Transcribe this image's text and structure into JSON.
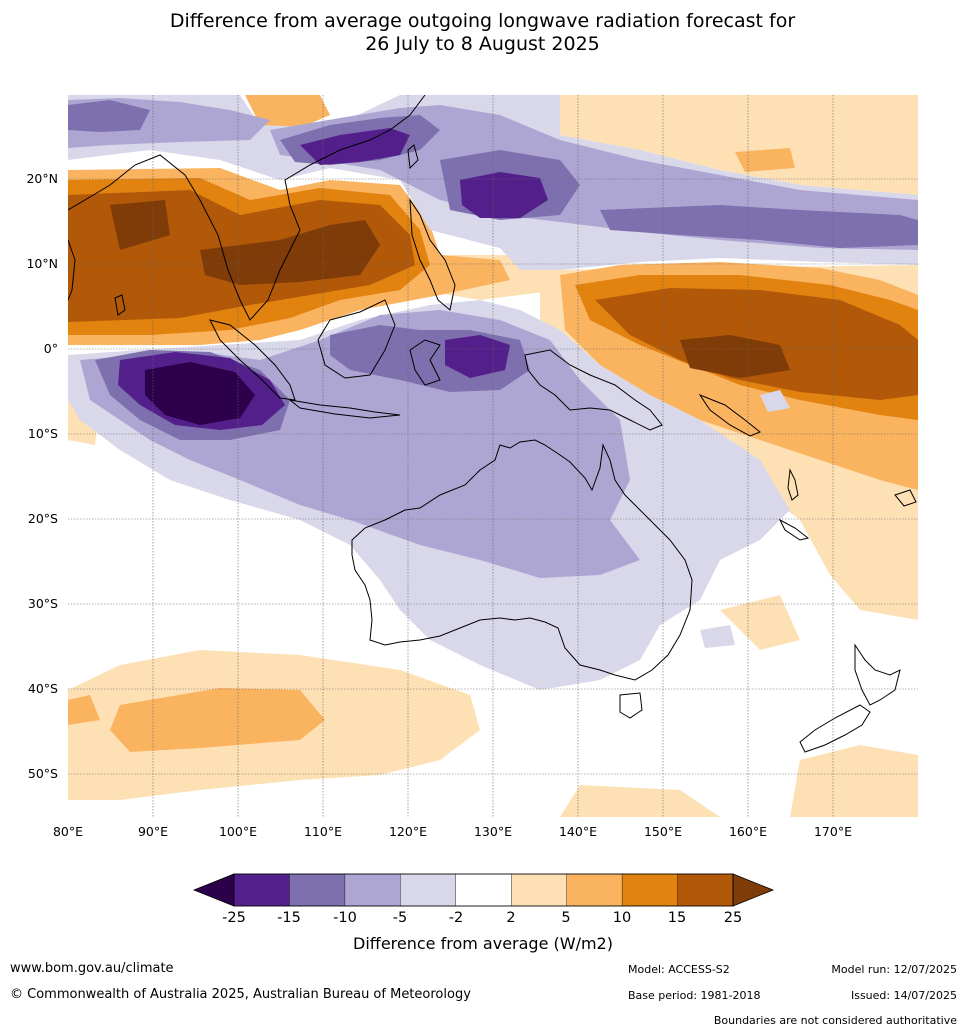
{
  "title": {
    "line1": "Difference from average outgoing longwave radiation forecast for",
    "line2": "26 July to 8 August 2025"
  },
  "map": {
    "lon_labels": [
      "80°E",
      "90°E",
      "100°E",
      "110°E",
      "120°E",
      "130°E",
      "140°E",
      "150°E",
      "160°E",
      "170°E"
    ],
    "lat_labels": [
      "20°N",
      "10°N",
      "0°",
      "10°S",
      "20°S",
      "30°S",
      "40°S",
      "50°S"
    ]
  },
  "colorbar": {
    "ticks": [
      "-25",
      "-15",
      "-10",
      "-5",
      "-2",
      "2",
      "5",
      "10",
      "15",
      "25"
    ],
    "colors": [
      "#531f8a",
      "#7e70ae",
      "#aea6d2",
      "#d9d8eb",
      "#ffffff",
      "#fee0b5",
      "#fab35f",
      "#e2820f",
      "#b15809"
    ],
    "extend_low_color": "#2d004b",
    "extend_high_color": "#7f3b08",
    "label": "Difference from average (W/m2)"
  },
  "footer": {
    "website": "www.bom.gov.au/climate",
    "copyright": "© Commonwealth of Australia 2025, Australian Bureau of Meteorology",
    "model": "Model: ACCESS-S2",
    "base_period": "Base period: 1981-2018",
    "model_run": "Model run: 12/07/2025",
    "issued": "Issued: 14/07/2025",
    "disclaimer": "Boundaries are not considered authoritative"
  }
}
